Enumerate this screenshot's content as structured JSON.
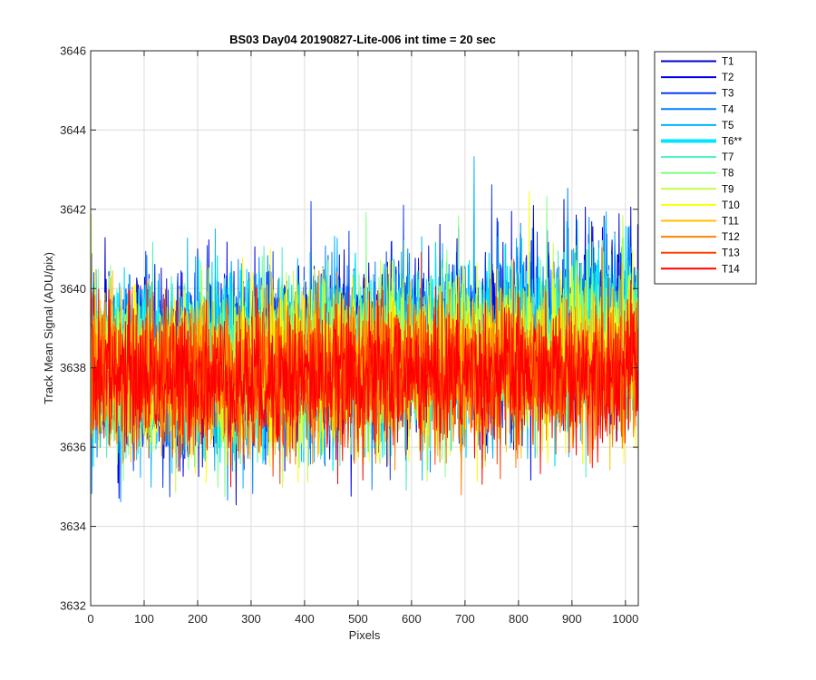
{
  "chart_data": {
    "type": "line",
    "title": "BS03 Day04 20190827-Lite-006 int time = 20 sec",
    "xlabel": "Pixels",
    "ylabel": "Track Mean Signal (ADU/pix)",
    "xlim": [
      0,
      1024
    ],
    "ylim": [
      3632,
      3646
    ],
    "xticks": [
      0,
      100,
      200,
      300,
      400,
      500,
      600,
      700,
      800,
      900,
      1000
    ],
    "yticks": [
      3632,
      3634,
      3636,
      3638,
      3640,
      3642,
      3644,
      3646
    ],
    "grid": true,
    "legend_position": "outside-top-right",
    "series": [
      {
        "name": "T1",
        "color": "#0000c8",
        "mean": [
          3638.0,
          3638.1,
          3638.7,
          3639.2
        ],
        "band": 2.0,
        "highlight": false
      },
      {
        "name": "T2",
        "color": "#0000e6",
        "mean": [
          3638.0,
          3638.1,
          3638.7,
          3639.2
        ],
        "band": 2.0,
        "highlight": false
      },
      {
        "name": "T3",
        "color": "#0a3cf0",
        "mean": [
          3638.0,
          3638.1,
          3638.6,
          3639.1
        ],
        "band": 2.0,
        "highlight": false
      },
      {
        "name": "T4",
        "color": "#0080ff",
        "mean": [
          3638.0,
          3638.0,
          3638.6,
          3639.1
        ],
        "band": 2.0,
        "highlight": false
      },
      {
        "name": "T5",
        "color": "#00b4ff",
        "mean": [
          3638.0,
          3638.0,
          3638.6,
          3639.0
        ],
        "band": 2.0,
        "highlight": false
      },
      {
        "name": "T6**",
        "color": "#00e6ff",
        "mean": [
          3638.0,
          3638.0,
          3638.5,
          3639.0
        ],
        "band": 2.0,
        "highlight": true
      },
      {
        "name": "T7",
        "color": "#40f0c0",
        "mean": [
          3638.0,
          3638.0,
          3638.5,
          3638.9
        ],
        "band": 1.9,
        "highlight": false
      },
      {
        "name": "T8",
        "color": "#80ff80",
        "mean": [
          3638.0,
          3637.9,
          3638.4,
          3638.8
        ],
        "band": 1.9,
        "highlight": false
      },
      {
        "name": "T9",
        "color": "#c0ff40",
        "mean": [
          3637.9,
          3637.9,
          3638.3,
          3638.6
        ],
        "band": 1.8,
        "highlight": false
      },
      {
        "name": "T10",
        "color": "#ffff00",
        "mean": [
          3637.9,
          3637.8,
          3638.1,
          3638.4
        ],
        "band": 1.8,
        "highlight": false
      },
      {
        "name": "T11",
        "color": "#ffc000",
        "mean": [
          3637.9,
          3637.8,
          3638.0,
          3638.2
        ],
        "band": 1.7,
        "highlight": false
      },
      {
        "name": "T12",
        "color": "#ff8000",
        "mean": [
          3637.9,
          3637.7,
          3637.9,
          3638.0
        ],
        "band": 1.7,
        "highlight": false
      },
      {
        "name": "T13",
        "color": "#ff4000",
        "mean": [
          3637.9,
          3637.7,
          3637.8,
          3637.9
        ],
        "band": 1.6,
        "highlight": false
      },
      {
        "name": "T14",
        "color": "#ff0000",
        "mean": [
          3637.9,
          3637.7,
          3637.8,
          3637.9
        ],
        "band": 1.6,
        "highlight": false
      }
    ],
    "mean_x": [
      0,
      256,
      700,
      1024
    ]
  }
}
